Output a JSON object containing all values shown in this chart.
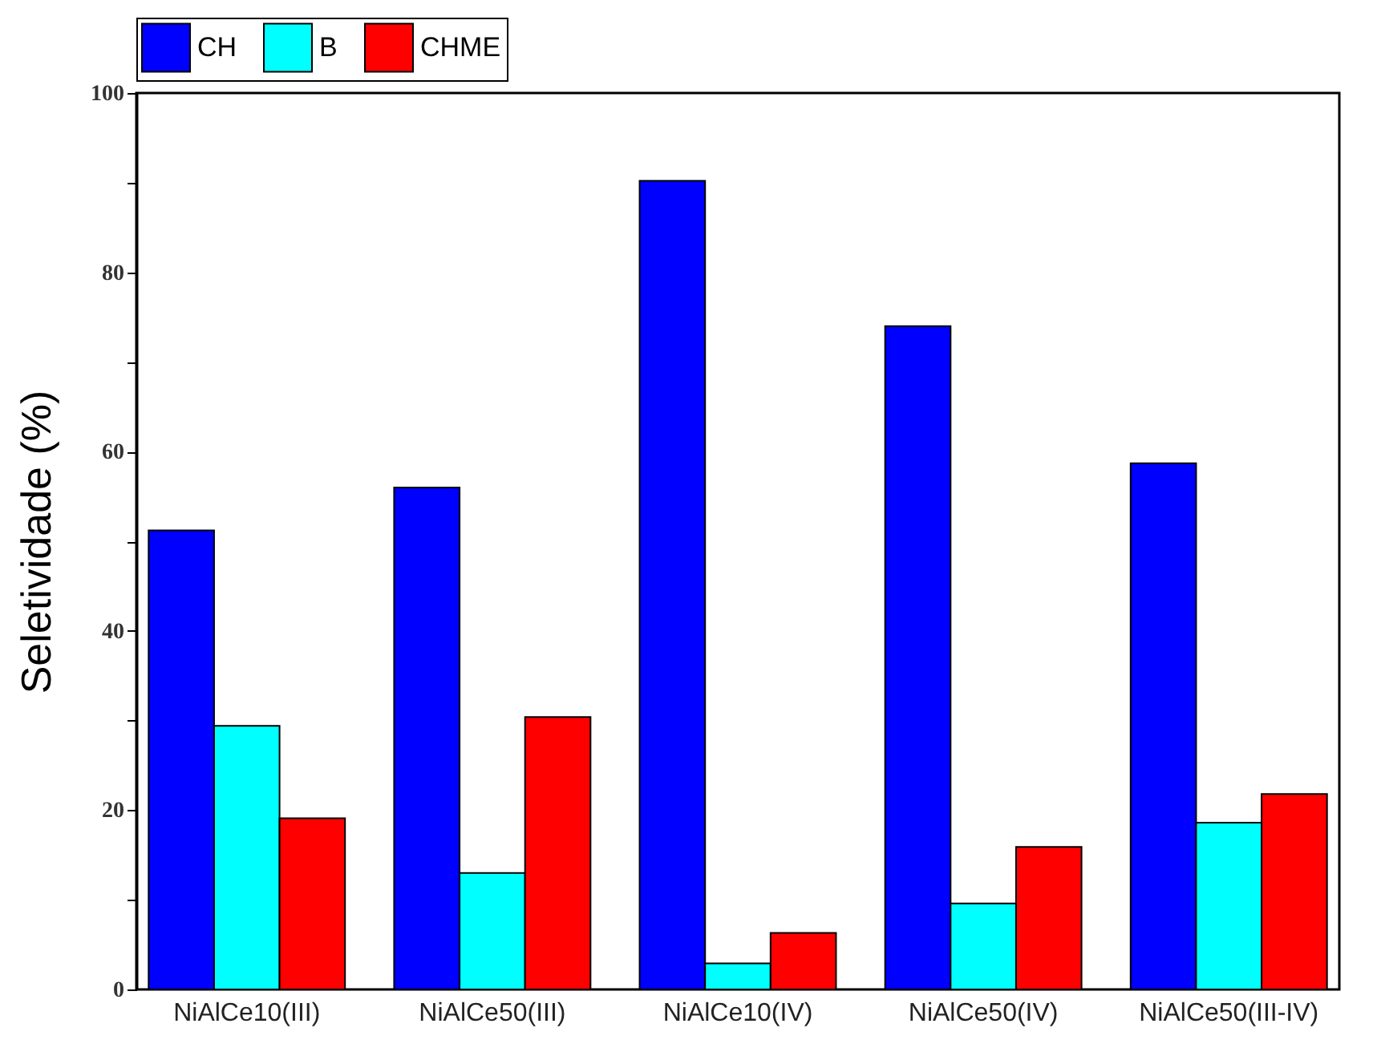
{
  "chart_data": {
    "type": "bar",
    "ylabel": "Seletividade (%)",
    "categories": [
      "NiAlCe10(III)",
      "NiAlCe50(III)",
      "NiAlCe10(IV)",
      "NiAlCe50(IV)",
      "NiAlCe50(III-IV)"
    ],
    "series": [
      {
        "name": "CH",
        "color": "#0000ff",
        "values": [
          51.2,
          56.0,
          90.2,
          74.0,
          58.7
        ]
      },
      {
        "name": "B",
        "color": "#00ffff",
        "values": [
          29.4,
          13.0,
          2.9,
          9.6,
          18.6
        ]
      },
      {
        "name": "CHME",
        "color": "#ff0000",
        "values": [
          19.1,
          30.4,
          6.3,
          15.9,
          21.8
        ]
      }
    ],
    "ylim": [
      0,
      100
    ],
    "yticks": [
      0,
      {
        "value": 10,
        "label": null
      },
      20,
      {
        "value": 30,
        "label": null
      },
      40,
      {
        "value": 50,
        "label": null
      },
      60,
      {
        "value": 70,
        "label": null
      },
      80,
      {
        "value": 90,
        "label": null
      },
      100
    ],
    "legend": "top"
  }
}
